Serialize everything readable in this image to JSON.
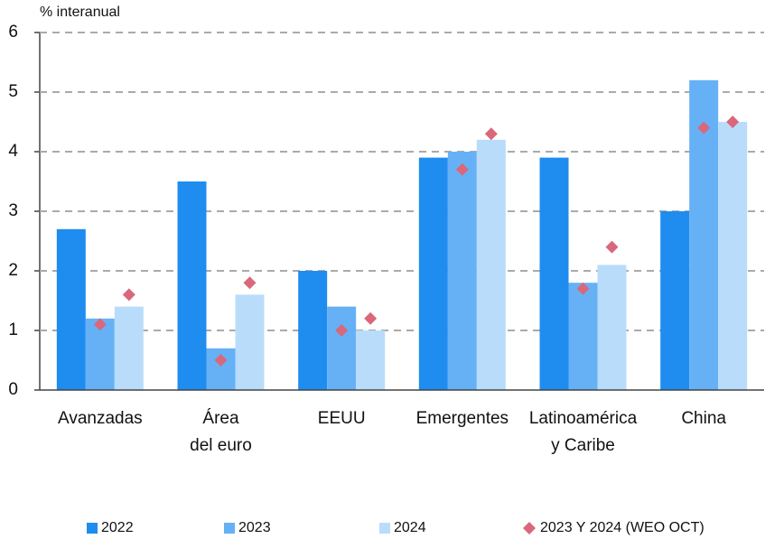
{
  "chart_data": {
    "type": "bar",
    "ylabel": "% interanual",
    "categories": [
      [
        "Avanzadas"
      ],
      [
        "Área",
        "del euro"
      ],
      [
        "EEUU"
      ],
      [
        "Emergentes"
      ],
      [
        "Latinoamérica",
        "y Caribe"
      ],
      [
        "China"
      ]
    ],
    "series": [
      {
        "name": "2022",
        "color": "#1f8cf0",
        "values": [
          2.7,
          3.5,
          2.0,
          3.9,
          3.9,
          3.0
        ]
      },
      {
        "name": "2023",
        "color": "#66b1f6",
        "values": [
          1.2,
          0.7,
          1.4,
          4.0,
          1.8,
          5.2
        ]
      },
      {
        "name": "2024",
        "color": "#b9dcfb",
        "values": [
          1.4,
          1.6,
          1.0,
          4.2,
          2.1,
          4.5
        ]
      }
    ],
    "markers": {
      "name": "2023 Y 2024 (WEO OCT)",
      "color": "#d9687a",
      "values_2023": [
        1.1,
        0.5,
        1.0,
        3.7,
        1.7,
        4.4
      ],
      "values_2024": [
        1.6,
        1.8,
        1.2,
        4.3,
        2.4,
        4.5
      ]
    },
    "ylim": [
      0,
      6
    ],
    "yticks": [
      0,
      1,
      2,
      3,
      4,
      5,
      6
    ],
    "grid": true
  }
}
